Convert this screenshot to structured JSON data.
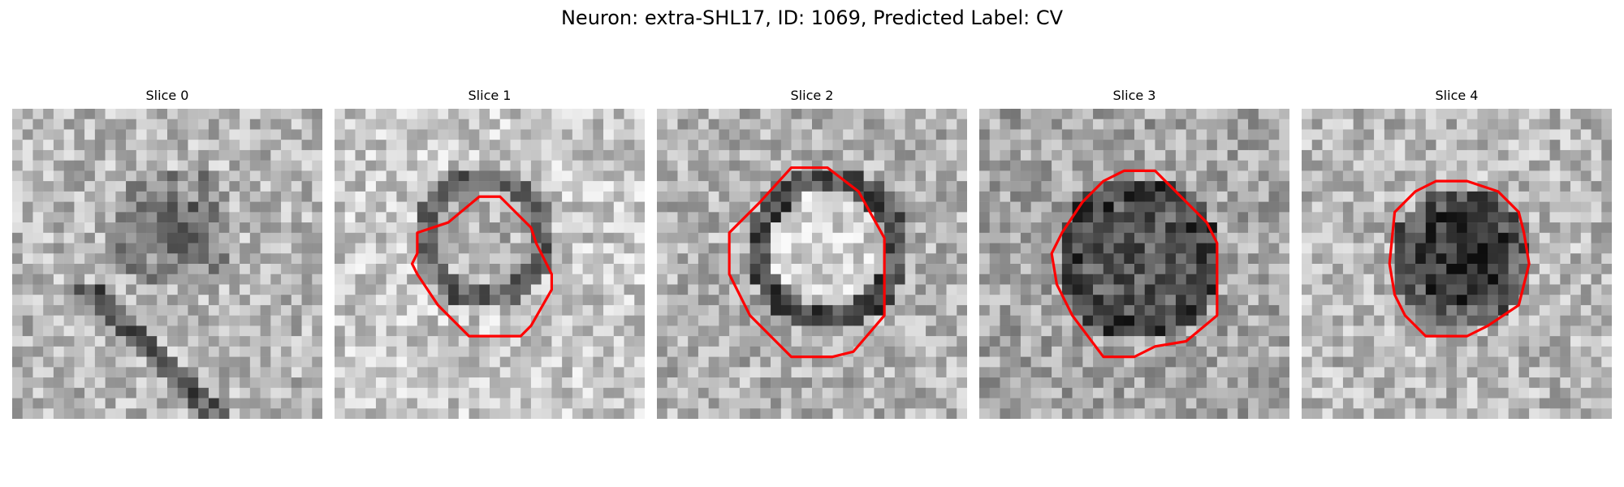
{
  "figure": {
    "title": "Neuron: extra-SHL17, ID: 1069, Predicted Label: CV"
  },
  "panels": [
    {
      "title": "Slice 0",
      "has_contour": false
    },
    {
      "title": "Slice 1",
      "has_contour": true
    },
    {
      "title": "Slice 2",
      "has_contour": true
    },
    {
      "title": "Slice 3",
      "has_contour": true
    },
    {
      "title": "Slice 4",
      "has_contour": true
    }
  ],
  "colors": {
    "contour": "#ff0000",
    "image_colormap": "grayscale"
  }
}
